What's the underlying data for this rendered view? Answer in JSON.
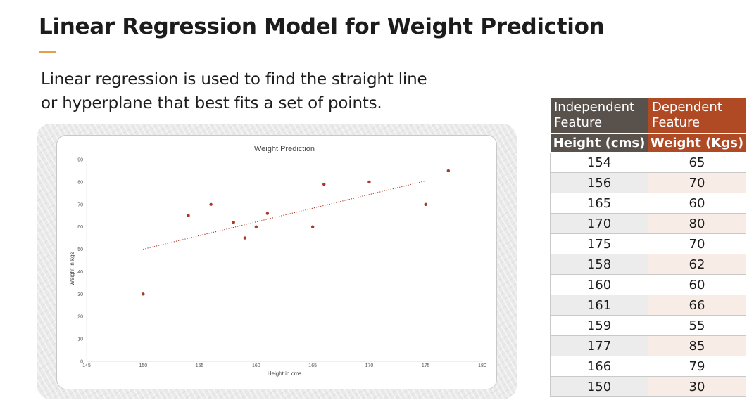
{
  "slide": {
    "title": "Linear Regression Model for Weight Prediction",
    "intro": "Linear regression is used to find the straight line or hyperplane that best fits a set of points.",
    "accent_color": "#e0a04a"
  },
  "chart_data": {
    "type": "scatter",
    "title": "Weight Prediction",
    "xlabel": "Height in cms",
    "ylabel": "Weight in kgs",
    "xlim": [
      145,
      180
    ],
    "ylim": [
      0,
      90
    ],
    "x_ticks": [
      "145",
      "150",
      "155",
      "160",
      "165",
      "170",
      "175",
      "180"
    ],
    "y_ticks": [
      "0",
      "10",
      "20",
      "30",
      "40",
      "50",
      "60",
      "70",
      "80",
      "90"
    ],
    "series": [
      {
        "points": [
          [
            154,
            65
          ],
          [
            156,
            70
          ],
          [
            165,
            60
          ],
          [
            170,
            80
          ],
          [
            175,
            70
          ],
          [
            158,
            62
          ],
          [
            160,
            60
          ],
          [
            161,
            66
          ],
          [
            159,
            55
          ],
          [
            177,
            85
          ],
          [
            166,
            79
          ],
          [
            150,
            30
          ]
        ],
        "color": "#a83a22"
      }
    ],
    "trendline": {
      "from": [
        150,
        50
      ],
      "to": [
        175,
        80.5
      ],
      "style": "dotted",
      "color": "#a83a22"
    },
    "grid": false
  },
  "table": {
    "headers": [
      "Independent Feature",
      "Dependent Feature"
    ],
    "subheaders": [
      "Height (cms)",
      "Weight (Kgs)"
    ],
    "rows": [
      [
        "154",
        "65"
      ],
      [
        "156",
        "70"
      ],
      [
        "165",
        "60"
      ],
      [
        "170",
        "80"
      ],
      [
        "175",
        "70"
      ],
      [
        "158",
        "62"
      ],
      [
        "160",
        "60"
      ],
      [
        "161",
        "66"
      ],
      [
        "159",
        "55"
      ],
      [
        "177",
        "85"
      ],
      [
        "166",
        "79"
      ],
      [
        "150",
        "30"
      ]
    ]
  }
}
